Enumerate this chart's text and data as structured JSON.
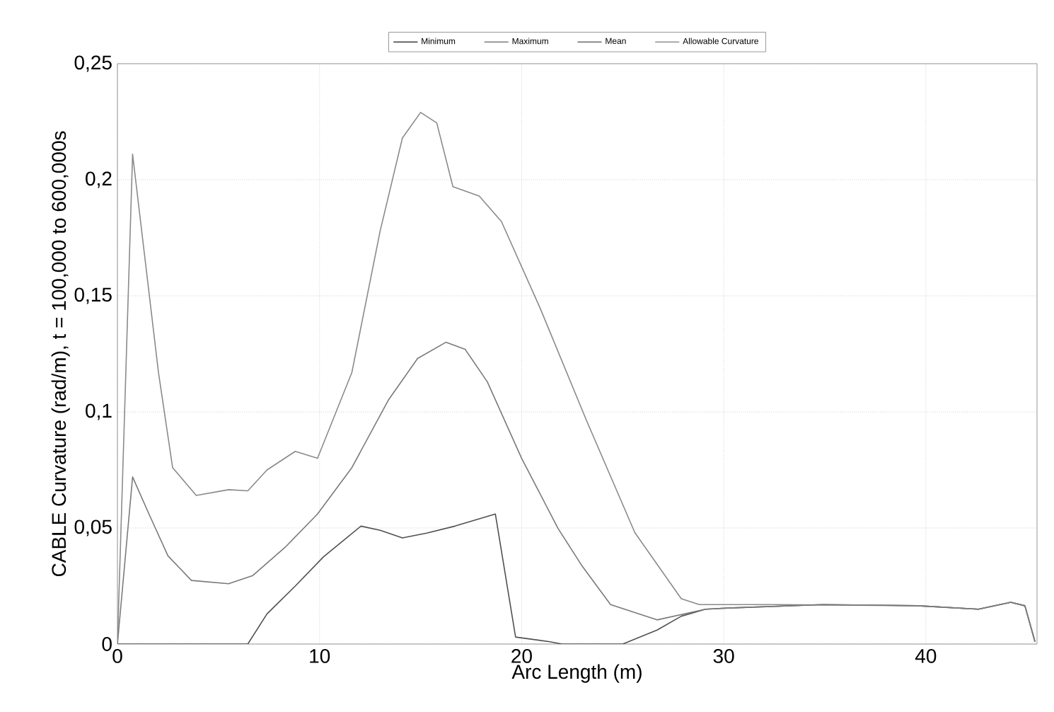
{
  "chart_data": {
    "type": "line",
    "xlabel": "Arc Length (m)",
    "ylabel": "CABLE Curvature (rad/m), t = 100,000 to 600,000s",
    "xlim": [
      0,
      45.5
    ],
    "ylim": [
      0,
      0.25
    ],
    "xticks": [
      0,
      10,
      20,
      30,
      40
    ],
    "yticks": [
      {
        "value": 0,
        "label": "0"
      },
      {
        "value": 0.05,
        "label": "0,05"
      },
      {
        "value": 0.1,
        "label": "0,1"
      },
      {
        "value": 0.15,
        "label": "0,15"
      },
      {
        "value": 0.2,
        "label": "0,2"
      },
      {
        "value": 0.25,
        "label": "0,25"
      }
    ],
    "grid": true,
    "legend": "top",
    "line_style": "solid",
    "marker": "none",
    "series": [
      {
        "name": "Minimum",
        "color": "#505050",
        "x": [
          0,
          6.45,
          7.4,
          8.8,
          10.2,
          12.05,
          13.0,
          14.1,
          15.3,
          16.7,
          18.7,
          19.7,
          21.4,
          22,
          25,
          26.7,
          27.9,
          29.1,
          30.2,
          34.9,
          39.6,
          42.6,
          44.2,
          44.9,
          45.4
        ],
        "values": [
          0,
          0,
          0.013,
          0.025,
          0.0376,
          0.0508,
          0.049,
          0.0457,
          0.0478,
          0.0508,
          0.056,
          0.003,
          0.001,
          0,
          0,
          0.006,
          0.012,
          0.015,
          0.0155,
          0.017,
          0.0165,
          0.015,
          0.018,
          0.0165,
          0.001
        ]
      },
      {
        "name": "Maximum",
        "color": "#8a8a8a",
        "x": [
          0,
          0.75,
          2.03,
          2.73,
          3.9,
          5.5,
          6.45,
          7.4,
          8.8,
          9.9,
          11.6,
          13.0,
          14.1,
          15.0,
          15.8,
          16.6,
          17.9,
          19.0,
          20.9,
          23.2,
          25.6,
          27.9,
          28.8,
          32.6,
          39.6,
          42.6,
          44.2,
          44.9,
          45.4
        ],
        "values": [
          0,
          0.211,
          0.117,
          0.076,
          0.064,
          0.0665,
          0.066,
          0.075,
          0.083,
          0.08,
          0.117,
          0.178,
          0.218,
          0.229,
          0.2245,
          0.197,
          0.193,
          0.182,
          0.145,
          0.0965,
          0.048,
          0.0195,
          0.017,
          0.017,
          0.0165,
          0.015,
          0.018,
          0.0165,
          0.001
        ]
      },
      {
        "name": "Mean",
        "color": "#7a7a7a",
        "x": [
          0,
          0.75,
          1.56,
          2.5,
          3.66,
          5.5,
          6.7,
          8.3,
          9.9,
          11.6,
          13.4,
          14.85,
          16.25,
          17.2,
          18.3,
          20.0,
          21.8,
          23.0,
          24.4,
          26.7,
          29.1,
          30.2,
          34.9,
          39.6,
          42.6,
          44.2,
          44.9,
          45.4
        ],
        "values": [
          0,
          0.072,
          0.056,
          0.038,
          0.0274,
          0.026,
          0.0295,
          0.0417,
          0.056,
          0.076,
          0.105,
          0.123,
          0.13,
          0.127,
          0.113,
          0.08,
          0.0498,
          0.0335,
          0.017,
          0.0104,
          0.015,
          0.0155,
          0.017,
          0.0165,
          0.015,
          0.018,
          0.0165,
          0.001
        ]
      },
      {
        "name": "Allowable Curvature",
        "color": "#9a9a9a"
      }
    ]
  }
}
